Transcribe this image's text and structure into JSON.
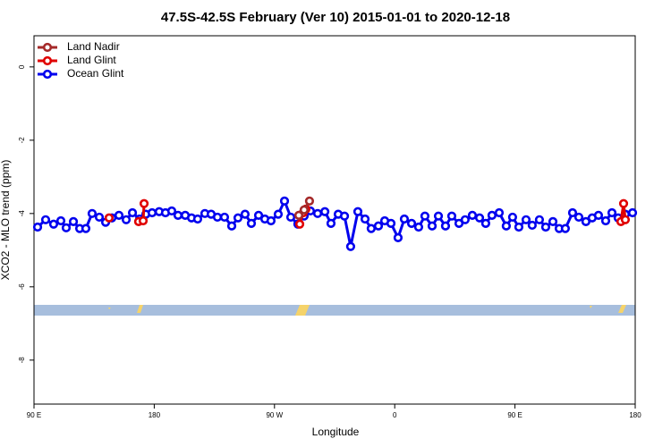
{
  "chart_data": {
    "type": "line",
    "title": "47.5S-42.5S February (Ver 10)   2015-01-01 to 2020-12-18",
    "x_label": "Longitude",
    "y_label": "XCO2 - MLO trend (ppm)",
    "xlim": [
      90,
      540
    ],
    "ylim": [
      -9.2,
      0.85
    ],
    "xticks": [
      {
        "value": 90,
        "label": "90 E"
      },
      180,
      {
        "value": 270,
        "label": "90 W"
      },
      {
        "value": 360,
        "label": "0"
      },
      {
        "value": 450,
        "label": "90 E"
      },
      {
        "value": 540,
        "label": "180"
      }
    ],
    "yticks": [
      0,
      -2,
      -4,
      -6,
      -8
    ],
    "legend": "upper left",
    "series": [
      {
        "name": "Land Nadir",
        "color": "#a52a2a",
        "x": [
          288.2,
          292.2,
          296.2
        ],
        "values": [
          -4.05,
          -3.9,
          -3.66
        ]
      },
      {
        "name": "Land Glint",
        "color": "#e00000",
        "x": [
          146.2,
          null,
          168.3,
          171.7,
          172.4,
          null,
          288.9,
          291.5,
          293.5,
          null,
          529.3,
          531.3,
          532.6
        ],
        "values": [
          -4.12,
          null,
          -4.22,
          -4.2,
          -3.73,
          null,
          -4.29,
          -3.98,
          -3.88,
          null,
          -4.22,
          -3.73,
          -4.17
        ]
      },
      {
        "name": "Ocean Glint",
        "color": "#0000ee",
        "x": [
          92.7,
          98.7,
          104.7,
          110.1,
          114.1,
          119.5,
          124.2,
          128.8,
          133.5,
          138.9,
          143.6,
          148.3,
          153.6,
          159.0,
          163.7,
          169.0,
          173.7,
          178.4,
          183.7,
          188.4,
          193.1,
          197.8,
          203.2,
          207.9,
          212.5,
          217.9,
          222.6,
          227.3,
          232.6,
          238.0,
          242.7,
          248.0,
          252.7,
          258.1,
          262.8,
          267.4,
          272.8,
          277.5,
          282.2,
          287.5,
          292.2,
          296.9,
          302.3,
          307.7,
          312.3,
          317.7,
          322.4,
          327.0,
          332.4,
          337.8,
          342.4,
          347.8,
          352.5,
          357.2,
          362.5,
          367.2,
          372.6,
          377.9,
          382.6,
          388.0,
          392.7,
          398.0,
          402.7,
          408.1,
          412.7,
          418.1,
          423.5,
          428.1,
          432.8,
          438.2,
          443.5,
          448.2,
          452.9,
          458.3,
          462.9,
          468.3,
          473.0,
          478.4,
          483.1,
          487.7,
          493.1,
          497.8,
          503.1,
          507.8,
          512.5,
          517.9,
          522.6,
          527.2,
          532.6,
          538.0
        ],
        "values": [
          -4.37,
          -4.17,
          -4.29,
          -4.2,
          -4.39,
          -4.22,
          -4.41,
          -4.41,
          -4.0,
          -4.1,
          -4.24,
          -4.12,
          -4.05,
          -4.17,
          -3.98,
          -4.15,
          -4.02,
          -3.98,
          -3.95,
          -3.98,
          -3.93,
          -4.05,
          -4.05,
          -4.12,
          -4.15,
          -4.0,
          -4.02,
          -4.1,
          -4.1,
          -4.34,
          -4.12,
          -4.02,
          -4.27,
          -4.05,
          -4.15,
          -4.2,
          -4.02,
          -3.66,
          -4.1,
          -4.29,
          -4.07,
          -3.93,
          -4.0,
          -3.95,
          -4.27,
          -4.02,
          -4.07,
          -4.9,
          -3.95,
          -4.15,
          -4.41,
          -4.34,
          -4.2,
          -4.27,
          -4.66,
          -4.15,
          -4.27,
          -4.37,
          -4.07,
          -4.34,
          -4.07,
          -4.34,
          -4.07,
          -4.27,
          -4.17,
          -4.05,
          -4.12,
          -4.27,
          -4.05,
          -3.98,
          -4.34,
          -4.1,
          -4.37,
          -4.17,
          -4.32,
          -4.17,
          -4.37,
          -4.22,
          -4.41,
          -4.41,
          -3.98,
          -4.1,
          -4.22,
          -4.12,
          -4.05,
          -4.2,
          -3.98,
          -4.12,
          -4.02,
          -3.98
        ]
      }
    ]
  }
}
